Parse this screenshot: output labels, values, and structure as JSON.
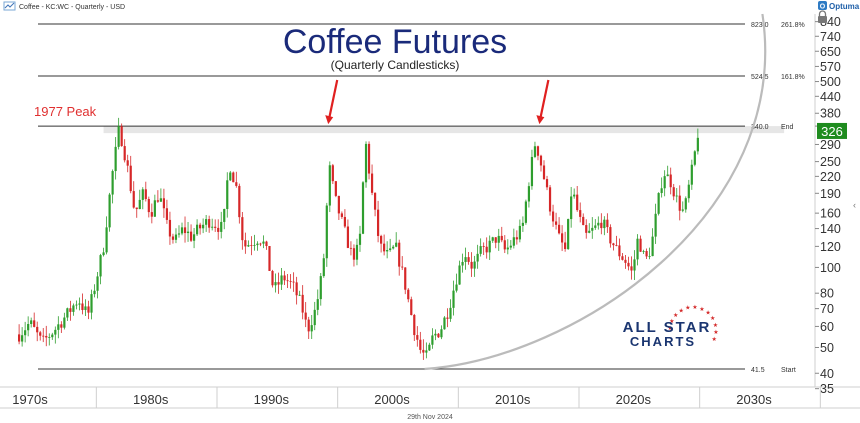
{
  "header": {
    "instrument": "Coffee - KC:WC - Quarterly - USD",
    "brand": "Optuma",
    "footer_date": "29th Nov 2024"
  },
  "watermark": {
    "line1": "ALL STAR",
    "line2": "CHARTS"
  },
  "colors": {
    "up": "#2e9e2e",
    "down": "#d62728",
    "title": "#1a2a7a",
    "peak_label": "#e03030",
    "arrow": "#e02020",
    "current_badge": "#1f8c1f",
    "arc": "#bbbbbb"
  },
  "chart_data": {
    "type": "candlestick",
    "title": "Coffee Futures",
    "subtitle": "(Quarterly Candlesticks)",
    "annotations": [
      {
        "text": "1977 Peak",
        "x": 1977,
        "y": 340
      }
    ],
    "arrows": [
      {
        "x": 1994.3,
        "y": 340
      },
      {
        "x": 2011.8,
        "y": 340
      }
    ],
    "y_scale": "log",
    "ylim": [
      35,
      860
    ],
    "xlim": [
      1968.5,
      2035
    ],
    "y_ticks": [
      35,
      40,
      50,
      60,
      70,
      80,
      100,
      120,
      140,
      160,
      190,
      220,
      250,
      290,
      340,
      380,
      440,
      500,
      570,
      650,
      740,
      840
    ],
    "y_tick_labels": [
      "35",
      "40",
      "50",
      "60",
      "70",
      "80",
      "100",
      "120",
      "140",
      "160",
      "190",
      "220",
      "250",
      "290",
      "",
      "380",
      "440",
      "500",
      "570",
      "650",
      "740",
      "840"
    ],
    "x_ticks": [
      {
        "label": "1970s",
        "x": 1970
      },
      {
        "label": "1980s",
        "x": 1980
      },
      {
        "label": "1990s",
        "x": 1990
      },
      {
        "label": "2000s",
        "x": 2000
      },
      {
        "label": "2010s",
        "x": 2010
      },
      {
        "label": "2020s",
        "x": 2020
      },
      {
        "label": "2030s",
        "x": 2030
      }
    ],
    "levels": [
      {
        "value": 823.0,
        "label_value": "823.0",
        "label_text": "261.8%"
      },
      {
        "value": 524.5,
        "label_value": "524.5",
        "label_text": "161.8%"
      },
      {
        "value": 340.0,
        "label_value": "340.0",
        "label_text": "End"
      },
      {
        "value": 41.5,
        "label_value": "41.5",
        "label_text": "Start"
      }
    ],
    "resistance_zone": [
      320,
      340
    ],
    "current_price": {
      "value": 326,
      "label": "326"
    },
    "path": [
      [
        1968.6,
        56
      ],
      [
        1969.5,
        62
      ],
      [
        1970.5,
        52
      ],
      [
        1971.5,
        58
      ],
      [
        1972.5,
        66
      ],
      [
        1973.5,
        76
      ],
      [
        1974.3,
        66
      ],
      [
        1975.0,
        90
      ],
      [
        1975.6,
        120
      ],
      [
        1976.3,
        220
      ],
      [
        1976.9,
        335
      ],
      [
        1977.5,
        250
      ],
      [
        1978.2,
        160
      ],
      [
        1978.9,
        190
      ],
      [
        1979.5,
        160
      ],
      [
        1980.2,
        190
      ],
      [
        1980.9,
        140
      ],
      [
        1981.5,
        125
      ],
      [
        1982.2,
        140
      ],
      [
        1982.9,
        130
      ],
      [
        1983.5,
        140
      ],
      [
        1984.3,
        150
      ],
      [
        1984.9,
        145
      ],
      [
        1985.5,
        140
      ],
      [
        1986.0,
        250
      ],
      [
        1986.6,
        200
      ],
      [
        1987.2,
        120
      ],
      [
        1987.9,
        125
      ],
      [
        1988.5,
        130
      ],
      [
        1989.0,
        120
      ],
      [
        1989.7,
        82
      ],
      [
        1990.5,
        92
      ],
      [
        1991.3,
        85
      ],
      [
        1992.0,
        72
      ],
      [
        1992.5,
        58
      ],
      [
        1993.2,
        70
      ],
      [
        1993.8,
        100
      ],
      [
        1994.3,
        240
      ],
      [
        1994.8,
        180
      ],
      [
        1995.5,
        140
      ],
      [
        1996.2,
        110
      ],
      [
        1996.8,
        118
      ],
      [
        1997.3,
        300
      ],
      [
        1997.9,
        180
      ],
      [
        1998.5,
        120
      ],
      [
        1999.2,
        110
      ],
      [
        1999.8,
        120
      ],
      [
        2000.5,
        90
      ],
      [
        2001.3,
        60
      ],
      [
        2001.9,
        48
      ],
      [
        2002.4,
        46
      ],
      [
        2002.9,
        55
      ],
      [
        2003.5,
        58
      ],
      [
        2004.2,
        70
      ],
      [
        2004.8,
        90
      ],
      [
        2005.5,
        115
      ],
      [
        2006.2,
        100
      ],
      [
        2006.9,
        115
      ],
      [
        2007.5,
        120
      ],
      [
        2008.2,
        130
      ],
      [
        2008.9,
        115
      ],
      [
        2009.5,
        125
      ],
      [
        2010.3,
        140
      ],
      [
        2010.9,
        220
      ],
      [
        2011.4,
        300
      ],
      [
        2011.9,
        240
      ],
      [
        2012.6,
        170
      ],
      [
        2013.3,
        130
      ],
      [
        2013.9,
        115
      ],
      [
        2014.4,
        200
      ],
      [
        2014.9,
        160
      ],
      [
        2015.5,
        130
      ],
      [
        2016.3,
        140
      ],
      [
        2016.9,
        150
      ],
      [
        2017.5,
        130
      ],
      [
        2018.2,
        115
      ],
      [
        2018.9,
        105
      ],
      [
        2019.4,
        95
      ],
      [
        2019.9,
        130
      ],
      [
        2020.5,
        105
      ],
      [
        2021.0,
        120
      ],
      [
        2021.5,
        170
      ],
      [
        2022.0,
        230
      ],
      [
        2022.6,
        210
      ],
      [
        2023.2,
        175
      ],
      [
        2023.7,
        160
      ],
      [
        2024.1,
        200
      ],
      [
        2024.5,
        250
      ],
      [
        2024.88,
        326
      ]
    ]
  }
}
